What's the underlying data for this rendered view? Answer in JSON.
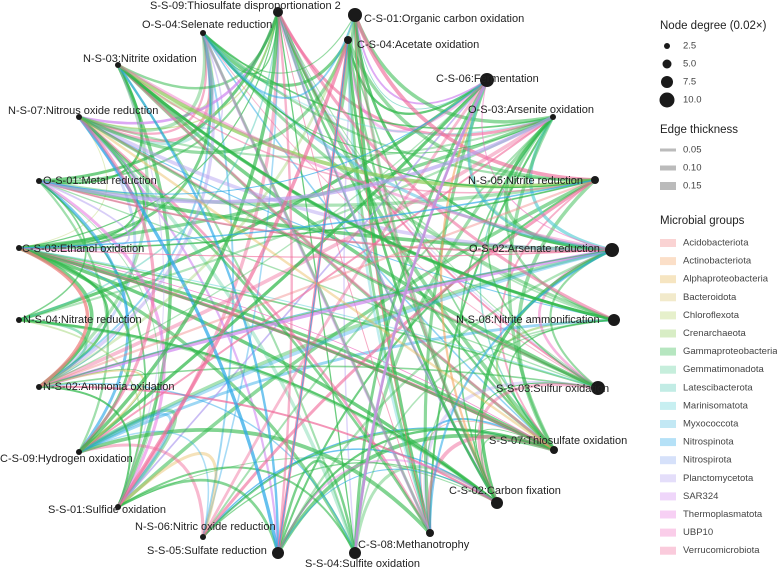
{
  "nodes": [
    {
      "label": "S-S-09:Thiosulfate disproportionation 2"
    },
    {
      "label": "C-S-01:Organic carbon oxidation"
    },
    {
      "label": "O-S-04:Selenate reduction"
    },
    {
      "label": "C-S-04:Acetate oxidation"
    },
    {
      "label": "C-S-06:Fermentation"
    },
    {
      "label": "N-S-03:Nitrite oxidation"
    },
    {
      "label": "O-S-03:Arsenite oxidation"
    },
    {
      "label": "N-S-07:Nitrous oxide reduction"
    },
    {
      "label": "N-S-05:Nitrite reduction"
    },
    {
      "label": "O-S-01:Metal reduction"
    },
    {
      "label": "O-S-02:Arsenate reduction"
    },
    {
      "label": "C-S-03:Ethanol oxidation"
    },
    {
      "label": "N-S-08:Nitrite ammonification"
    },
    {
      "label": "N-S-04:Nitrate reduction"
    },
    {
      "label": "S-S-03:Sulfur oxidation"
    },
    {
      "label": "N-S-02:Ammonia oxidation"
    },
    {
      "label": "S-S-07:Thiosulfate oxidation"
    },
    {
      "label": "C-S-09:Hydrogen oxidation"
    },
    {
      "label": "C-S-02:Carbon fixation"
    },
    {
      "label": "S-S-01:Sulfide oxidation"
    },
    {
      "label": "N-S-06:Nitric oxide reduction"
    },
    {
      "label": "C-S-08:Methanotrophy"
    },
    {
      "label": "S-S-05:Sulfate reduction"
    },
    {
      "label": "S-S-04:Sulfite oxidation"
    }
  ],
  "legend": {
    "node_degree": {
      "title": "Node degree (0.02×)",
      "items": [
        "2.5",
        "5.0",
        "7.5",
        "10.0"
      ]
    },
    "edge_thickness": {
      "title": "Edge thickness",
      "items": [
        "0.05",
        "0.10",
        "0.15"
      ]
    },
    "microbial_groups": {
      "title": "Microbial groups",
      "items": [
        {
          "name": "Acidobacteriota",
          "color": "#f08080"
        },
        {
          "name": "Actinobacteriota",
          "color": "#f4a460"
        },
        {
          "name": "Alphaproteobacteria",
          "color": "#e6b44c"
        },
        {
          "name": "Bacteroidota",
          "color": "#d9c36a"
        },
        {
          "name": "Chloroflexota",
          "color": "#b8d46a"
        },
        {
          "name": "Crenarchaeota",
          "color": "#8fcc5a"
        },
        {
          "name": "Gammaproteobacteria",
          "color": "#2fb84a"
        },
        {
          "name": "Gemmatimonadota",
          "color": "#5ccf9c"
        },
        {
          "name": "Latescibacterota",
          "color": "#4fc9b5"
        },
        {
          "name": "Marinisomatota",
          "color": "#5fd0d6"
        },
        {
          "name": "Myxococcota",
          "color": "#50bce0"
        },
        {
          "name": "Nitrospinota",
          "color": "#2aa8e8"
        },
        {
          "name": "Nitrospirota",
          "color": "#8aa8f0"
        },
        {
          "name": "Planctomycetota",
          "color": "#b3a0f0"
        },
        {
          "name": "SAR324",
          "color": "#d08af0"
        },
        {
          "name": "Thermoplasmatota",
          "color": "#e878e0"
        },
        {
          "name": "UBP10",
          "color": "#f070c0"
        },
        {
          "name": "Verrucomicrobiota",
          "color": "#f06a9a"
        }
      ]
    }
  }
}
